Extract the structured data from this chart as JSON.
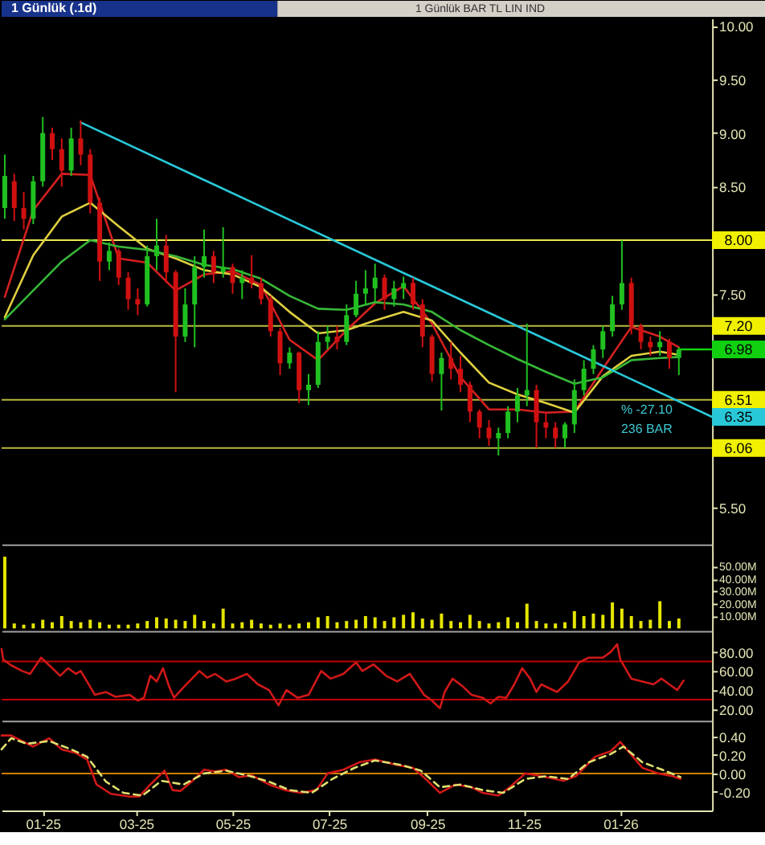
{
  "chart_data": [
    {
      "type": "candlestick",
      "title": "1 Günlük (.1d)",
      "subtitle": "1 Günlük BAR TL LIN IND",
      "annotations": [
        "% -27.10",
        "236 BAR"
      ],
      "x": [
        "2024-12-08",
        "2024-12-14",
        "2024-12-20",
        "2024-12-26",
        "2025-01-01",
        "2025-01-07",
        "2025-01-13",
        "2025-01-19",
        "2025-01-25",
        "2025-01-31",
        "2025-02-06",
        "2025-02-12",
        "2025-02-18",
        "2025-02-24",
        "2025-03-02",
        "2025-03-08",
        "2025-03-14",
        "2025-03-20",
        "2025-03-26",
        "2025-04-01",
        "2025-04-07",
        "2025-04-13",
        "2025-04-19",
        "2025-04-25",
        "2025-05-01",
        "2025-05-07",
        "2025-05-13",
        "2025-05-19",
        "2025-05-25",
        "2025-05-31",
        "2025-06-06",
        "2025-06-12",
        "2025-06-18",
        "2025-06-24",
        "2025-06-30",
        "2025-07-06",
        "2025-07-12",
        "2025-07-18",
        "2025-07-24",
        "2025-07-30",
        "2025-08-05",
        "2025-08-11",
        "2025-08-17",
        "2025-08-23",
        "2025-08-29",
        "2025-09-04",
        "2025-09-10",
        "2025-09-16",
        "2025-09-22",
        "2025-09-28",
        "2025-10-04",
        "2025-10-10",
        "2025-10-16",
        "2025-10-22",
        "2025-10-28",
        "2025-11-03",
        "2025-11-09",
        "2025-11-15",
        "2025-11-21",
        "2025-11-27",
        "2025-12-03",
        "2025-12-09",
        "2025-12-15",
        "2025-12-21",
        "2025-12-27",
        "2026-01-02",
        "2026-01-08",
        "2026-01-14",
        "2026-01-20",
        "2026-01-26",
        "2026-02-01",
        "2026-02-07"
      ],
      "ohlc": [
        [
          8.3,
          8.8,
          8.2,
          8.6
        ],
        [
          8.55,
          8.62,
          8.18,
          8.3
        ],
        [
          8.3,
          8.45,
          8.1,
          8.2
        ],
        [
          8.2,
          8.6,
          8.15,
          8.55
        ],
        [
          8.55,
          9.15,
          8.5,
          9.0
        ],
        [
          9.0,
          9.05,
          8.75,
          8.85
        ],
        [
          8.85,
          8.95,
          8.5,
          8.65
        ],
        [
          8.65,
          9.05,
          8.6,
          8.95
        ],
        [
          8.95,
          9.12,
          8.7,
          8.8
        ],
        [
          8.8,
          8.85,
          8.25,
          8.35
        ],
        [
          8.35,
          8.4,
          7.62,
          7.8
        ],
        [
          7.8,
          7.98,
          7.72,
          7.9
        ],
        [
          7.9,
          7.92,
          7.58,
          7.65
        ],
        [
          7.65,
          7.7,
          7.35,
          7.45
        ],
        [
          7.45,
          7.55,
          7.3,
          7.4
        ],
        [
          7.4,
          7.95,
          7.38,
          7.85
        ],
        [
          7.85,
          8.2,
          7.72,
          7.95
        ],
        [
          7.95,
          8.05,
          7.6,
          7.7
        ],
        [
          7.7,
          7.72,
          6.58,
          7.1
        ],
        [
          7.1,
          7.55,
          7.05,
          7.4
        ],
        [
          7.4,
          7.85,
          7.0,
          7.75
        ],
        [
          7.75,
          8.1,
          7.65,
          7.85
        ],
        [
          7.85,
          7.9,
          7.6,
          7.7
        ],
        [
          7.7,
          8.12,
          7.65,
          7.75
        ],
        [
          7.75,
          7.78,
          7.5,
          7.6
        ],
        [
          7.6,
          7.72,
          7.45,
          7.65
        ],
        [
          7.65,
          7.86,
          7.55,
          7.6
        ],
        [
          7.6,
          7.65,
          7.4,
          7.45
        ],
        [
          7.45,
          7.48,
          7.1,
          7.15
        ],
        [
          7.15,
          7.18,
          6.74,
          6.85
        ],
        [
          6.85,
          7.0,
          6.8,
          6.95
        ],
        [
          6.95,
          6.96,
          6.48,
          6.6
        ],
        [
          6.6,
          6.75,
          6.46,
          6.65
        ],
        [
          6.65,
          7.15,
          6.62,
          7.05
        ],
        [
          7.05,
          7.2,
          6.98,
          7.1
        ],
        [
          7.1,
          7.2,
          6.98,
          7.05
        ],
        [
          7.05,
          7.4,
          7.02,
          7.3
        ],
        [
          7.3,
          7.62,
          7.28,
          7.5
        ],
        [
          7.5,
          7.72,
          7.4,
          7.55
        ],
        [
          7.55,
          7.78,
          7.42,
          7.65
        ],
        [
          7.65,
          7.68,
          7.35,
          7.45
        ],
        [
          7.45,
          7.62,
          7.38,
          7.55
        ],
        [
          7.55,
          7.66,
          7.45,
          7.6
        ],
        [
          7.6,
          7.65,
          7.35,
          7.4
        ],
        [
          7.4,
          7.45,
          7.0,
          7.1
        ],
        [
          7.1,
          7.12,
          6.68,
          6.75
        ],
        [
          6.75,
          6.95,
          6.41,
          6.9
        ],
        [
          6.9,
          7.05,
          6.7,
          6.8
        ],
        [
          6.8,
          6.92,
          6.58,
          6.65
        ],
        [
          6.65,
          6.68,
          6.3,
          6.4
        ],
        [
          6.4,
          6.42,
          6.15,
          6.25
        ],
        [
          6.25,
          6.32,
          6.08,
          6.15
        ],
        [
          6.15,
          6.25,
          5.99,
          6.2
        ],
        [
          6.2,
          6.45,
          6.15,
          6.4
        ],
        [
          6.4,
          6.62,
          6.3,
          6.55
        ],
        [
          6.55,
          7.22,
          6.45,
          6.6
        ],
        [
          6.6,
          6.65,
          6.06,
          6.3
        ],
        [
          6.3,
          6.4,
          6.15,
          6.25
        ],
        [
          6.25,
          6.3,
          6.06,
          6.15
        ],
        [
          6.15,
          6.3,
          6.06,
          6.28
        ],
        [
          6.28,
          6.7,
          6.2,
          6.6
        ],
        [
          6.6,
          6.88,
          6.55,
          6.8
        ],
        [
          6.8,
          7.02,
          6.75,
          6.98
        ],
        [
          6.98,
          7.2,
          6.9,
          7.15
        ],
        [
          7.15,
          7.48,
          7.1,
          7.4
        ],
        [
          7.4,
          8.0,
          7.35,
          7.6
        ],
        [
          7.6,
          7.65,
          7.12,
          7.2
        ],
        [
          7.2,
          7.22,
          6.98,
          7.05
        ],
        [
          7.05,
          7.1,
          6.92,
          7.0
        ],
        [
          7.0,
          7.15,
          6.92,
          7.05
        ],
        [
          7.05,
          7.08,
          6.8,
          6.9
        ],
        [
          6.9,
          7.0,
          6.74,
          6.98
        ]
      ],
      "colors": [
        "#20c020",
        "#d01010",
        "#d01010",
        "#20c020",
        "#20c020",
        "#d01010",
        "#d01010",
        "#20c020",
        "#d01010",
        "#d01010",
        "#d01010",
        "#20c020",
        "#d01010",
        "#d01010",
        "#d01010",
        "#20c020",
        "#20c020",
        "#d01010",
        "#d01010",
        "#20c020",
        "#20c020",
        "#20c020",
        "#d01010",
        "#20c020",
        "#d01010",
        "#20c020",
        "#d01010",
        "#d01010",
        "#d01010",
        "#d01010",
        "#20c020",
        "#d01010",
        "#20c020",
        "#20c020",
        "#20c020",
        "#d01010",
        "#20c020",
        "#20c020",
        "#20c020",
        "#20c020",
        "#d01010",
        "#20c020",
        "#20c020",
        "#d01010",
        "#d01010",
        "#d01010",
        "#20c020",
        "#d01010",
        "#d01010",
        "#d01010",
        "#d01010",
        "#d01010",
        "#20c020",
        "#20c020",
        "#20c020",
        "#20c020",
        "#d01010",
        "#d01010",
        "#d01010",
        "#20c020",
        "#20c020",
        "#20c020",
        "#20c020",
        "#20c020",
        "#20c020",
        "#20c020",
        "#d01010",
        "#d01010",
        "#d01010",
        "#20c020",
        "#d01010",
        "#20c020"
      ],
      "series": [
        {
          "type": "line",
          "color": "#d42020",
          "x": [
            "2024-12-08",
            "2024-12-26",
            "2025-01-13",
            "2025-01-31",
            "2025-02-18",
            "2025-03-08",
            "2025-03-26",
            "2025-04-13",
            "2025-05-01",
            "2025-05-19",
            "2025-06-06",
            "2025-06-24",
            "2025-07-12",
            "2025-07-30",
            "2025-08-17",
            "2025-09-04",
            "2025-09-22",
            "2025-10-10",
            "2025-10-28",
            "2025-11-15",
            "2025-12-03",
            "2025-12-21",
            "2026-01-08",
            "2026-01-26",
            "2026-02-07"
          ],
          "values": [
            7.47,
            8.28,
            8.62,
            8.61,
            7.83,
            7.79,
            7.53,
            7.68,
            7.71,
            7.58,
            7.07,
            6.88,
            7.16,
            7.41,
            7.57,
            7.22,
            6.72,
            6.42,
            6.42,
            6.39,
            6.4,
            6.8,
            7.19,
            7.1,
            7.0
          ]
        },
        {
          "type": "line",
          "color": "#e0d040",
          "x": [
            "2024-12-08",
            "2024-12-26",
            "2025-01-13",
            "2025-01-31",
            "2025-02-18",
            "2025-03-08",
            "2025-03-26",
            "2025-04-13",
            "2025-05-01",
            "2025-05-19",
            "2025-06-06",
            "2025-06-24",
            "2025-07-12",
            "2025-07-30",
            "2025-08-17",
            "2025-09-04",
            "2025-09-22",
            "2025-10-10",
            "2025-10-28",
            "2025-11-15",
            "2025-12-03",
            "2025-12-21",
            "2026-01-08",
            "2026-01-26",
            "2026-02-07"
          ],
          "values": [
            7.28,
            7.86,
            8.22,
            8.35,
            8.13,
            7.92,
            7.83,
            7.72,
            7.68,
            7.56,
            7.33,
            7.13,
            7.16,
            7.25,
            7.33,
            7.25,
            6.95,
            6.67,
            6.56,
            6.48,
            6.39,
            6.73,
            6.92,
            6.96,
            6.93
          ]
        },
        {
          "type": "line",
          "color": "#38b838",
          "x": [
            "2024-12-08",
            "2024-12-26",
            "2025-01-13",
            "2025-01-31",
            "2025-02-18",
            "2025-03-08",
            "2025-03-26",
            "2025-04-13",
            "2025-05-01",
            "2025-05-19",
            "2025-06-06",
            "2025-06-24",
            "2025-07-12",
            "2025-07-30",
            "2025-08-17",
            "2025-09-04",
            "2025-09-22",
            "2025-10-10",
            "2025-10-28",
            "2025-11-15",
            "2025-12-03",
            "2025-12-21",
            "2026-01-08",
            "2026-01-26",
            "2026-02-07"
          ],
          "values": [
            7.26,
            7.53,
            7.8,
            8.0,
            7.94,
            7.91,
            7.85,
            7.77,
            7.73,
            7.64,
            7.48,
            7.36,
            7.35,
            7.42,
            7.4,
            7.33,
            7.16,
            7.02,
            6.89,
            6.77,
            6.66,
            6.72,
            6.88,
            6.9,
            6.91
          ]
        },
        {
          "type": "line",
          "color": "#28c8d8",
          "x": [
            "2025-01-25",
            "2026-02-28"
          ],
          "values": [
            9.1,
            6.35
          ],
          "value_labels": [
            null,
            "6.35"
          ]
        },
        {
          "type": "line",
          "color": "#10d010",
          "x": [
            "2026-02-07",
            "2026-02-28"
          ],
          "values": [
            6.98,
            6.98
          ],
          "value_labels": [
            null,
            "6.98"
          ]
        }
      ],
      "xlim": [
        "2024-12-06",
        "2026-02-28"
      ],
      "ylim": [
        5.16,
        10.07
      ],
      "yticks": [
        {
          "value": 10,
          "label": "10.00"
        },
        {
          "value": 9.5,
          "label": "9.50"
        },
        {
          "value": 9,
          "label": "9.00"
        },
        {
          "value": 8.5,
          "label": "8.50"
        },
        {
          "value": 7.5,
          "label": "7.50"
        },
        {
          "value": 5.5,
          "label": "5.50"
        }
      ],
      "ref_lines": [
        {
          "axis": "y",
          "value": 8.0,
          "label": "8.00",
          "color": "#e8e850"
        },
        {
          "axis": "y",
          "value": 7.2,
          "label": "7.20",
          "color": "#b8b840"
        },
        {
          "axis": "y",
          "value": 6.51,
          "label": "6.51",
          "color": "#b8b840"
        },
        {
          "axis": "y",
          "value": 6.06,
          "label": "6.06",
          "color": "#b8b840"
        }
      ],
      "tick_labels": "y"
    },
    {
      "type": "bar",
      "x": [
        "2024-12-08",
        "2024-12-14",
        "2024-12-20",
        "2024-12-26",
        "2025-01-01",
        "2025-01-07",
        "2025-01-13",
        "2025-01-19",
        "2025-01-25",
        "2025-01-31",
        "2025-02-06",
        "2025-02-12",
        "2025-02-18",
        "2025-02-24",
        "2025-03-02",
        "2025-03-08",
        "2025-03-14",
        "2025-03-20",
        "2025-03-26",
        "2025-04-01",
        "2025-04-07",
        "2025-04-13",
        "2025-04-19",
        "2025-04-25",
        "2025-05-01",
        "2025-05-07",
        "2025-05-13",
        "2025-05-19",
        "2025-05-25",
        "2025-05-31",
        "2025-06-06",
        "2025-06-12",
        "2025-06-18",
        "2025-06-24",
        "2025-06-30",
        "2025-07-06",
        "2025-07-12",
        "2025-07-18",
        "2025-07-24",
        "2025-07-30",
        "2025-08-05",
        "2025-08-11",
        "2025-08-17",
        "2025-08-23",
        "2025-08-29",
        "2025-09-04",
        "2025-09-10",
        "2025-09-16",
        "2025-09-22",
        "2025-09-28",
        "2025-10-04",
        "2025-10-10",
        "2025-10-16",
        "2025-10-22",
        "2025-10-28",
        "2025-11-03",
        "2025-11-09",
        "2025-11-15",
        "2025-11-21",
        "2025-11-27",
        "2025-12-03",
        "2025-12-09",
        "2025-12-15",
        "2025-12-21",
        "2025-12-27",
        "2026-01-02",
        "2026-01-08",
        "2026-01-14",
        "2026-01-20",
        "2026-01-26",
        "2026-02-01",
        "2026-02-07"
      ],
      "values": [
        58,
        4,
        3,
        4,
        7,
        5,
        10,
        6,
        5,
        7,
        5,
        3,
        3,
        3,
        4,
        6,
        9,
        8,
        7,
        6,
        11,
        6,
        4,
        16,
        4,
        5,
        7,
        4,
        3,
        4,
        3,
        4,
        5,
        9,
        10,
        5,
        6,
        7,
        10,
        9,
        6,
        9,
        11,
        13,
        8,
        7,
        12,
        6,
        5,
        11,
        6,
        4,
        5,
        9,
        5,
        20,
        6,
        4,
        4,
        5,
        14,
        10,
        12,
        11,
        21,
        16,
        10,
        6,
        7,
        22,
        6,
        8
      ],
      "color": "#e6e600",
      "xlim": [
        "2024-12-06",
        "2026-02-28"
      ],
      "ylim": [
        -2,
        68
      ],
      "yticks": [
        {
          "value": 50,
          "label": "50.00M"
        },
        {
          "value": 40,
          "label": "40.00M"
        },
        {
          "value": 30,
          "label": "30.00M"
        },
        {
          "value": 20,
          "label": "20.00M"
        },
        {
          "value": 10,
          "label": "10.00M"
        }
      ],
      "tick_labels": "y"
    },
    {
      "type": "line",
      "series": [
        {
          "color": "#d01818",
          "x": [
            "2024-12-06",
            "2024-12-07",
            "2024-12-12",
            "2024-12-19",
            "2024-12-24",
            "2024-12-31",
            "2025-01-07",
            "2025-01-12",
            "2025-01-17",
            "2025-01-22",
            "2025-01-25",
            "2025-02-03",
            "2025-02-10",
            "2025-02-16",
            "2025-02-25",
            "2025-03-02",
            "2025-03-06",
            "2025-03-10",
            "2025-03-14",
            "2025-03-18",
            "2025-03-22",
            "2025-03-25",
            "2025-03-31",
            "2025-04-10",
            "2025-04-15",
            "2025-04-20",
            "2025-04-27",
            "2025-05-03",
            "2025-05-10",
            "2025-05-17",
            "2025-05-24",
            "2025-05-30",
            "2025-06-04",
            "2025-06-11",
            "2025-06-18",
            "2025-06-26",
            "2025-07-02",
            "2025-07-10",
            "2025-07-18",
            "2025-07-22",
            "2025-07-29",
            "2025-08-06",
            "2025-08-13",
            "2025-08-21",
            "2025-08-30",
            "2025-09-04",
            "2025-09-09",
            "2025-09-12",
            "2025-09-17",
            "2025-09-24",
            "2025-09-29",
            "2025-10-06",
            "2025-10-11",
            "2025-10-16",
            "2025-10-21",
            "2025-10-26",
            "2025-10-31",
            "2025-11-05",
            "2025-11-09",
            "2025-11-12",
            "2025-11-22",
            "2025-11-29",
            "2025-12-06",
            "2025-12-12",
            "2025-12-21",
            "2025-12-26",
            "2025-12-30",
            "2026-01-01",
            "2026-01-08",
            "2026-01-15",
            "2026-01-22",
            "2026-01-27",
            "2026-02-01",
            "2026-02-06",
            "2026-02-10"
          ],
          "values": [
            83,
            72,
            66,
            60,
            57,
            74,
            63,
            55,
            63,
            57,
            60,
            35,
            38,
            33,
            35,
            29,
            32,
            55,
            49,
            63,
            43,
            32,
            43,
            60,
            53,
            57,
            49,
            52,
            57,
            46,
            40,
            24,
            40,
            32,
            35,
            60,
            52,
            57,
            69,
            60,
            67,
            55,
            49,
            57,
            35,
            29,
            21,
            38,
            52,
            43,
            35,
            32,
            26,
            33,
            32,
            46,
            63,
            52,
            38,
            46,
            38,
            49,
            69,
            74,
            74,
            80,
            88,
            72,
            52,
            49,
            46,
            52,
            46,
            40,
            50
          ]
        }
      ],
      "xlim": [
        "2024-12-06",
        "2026-02-28"
      ],
      "ylim": [
        8,
        102
      ],
      "yticks": [
        {
          "value": 80,
          "label": "80.00"
        },
        {
          "value": 60,
          "label": "60.00"
        },
        {
          "value": 40,
          "label": "40.00"
        },
        {
          "value": 20,
          "label": "20.00"
        }
      ],
      "ref_lines": [
        {
          "axis": "y",
          "value": 70,
          "color": "#c00000"
        },
        {
          "axis": "y",
          "value": 30,
          "color": "#c00000"
        }
      ],
      "tick_labels": "y"
    },
    {
      "type": "line",
      "series": [
        {
          "color": "#d01818",
          "x": [
            "2024-12-06",
            "2024-12-12",
            "2024-12-19",
            "2024-12-26",
            "2025-01-05",
            "2025-01-13",
            "2025-01-22",
            "2025-01-29",
            "2025-02-04",
            "2025-02-13",
            "2025-02-25",
            "2025-03-03",
            "2025-03-10",
            "2025-03-19",
            "2025-03-24",
            "2025-03-29",
            "2025-04-05",
            "2025-04-13",
            "2025-04-20",
            "2025-04-27",
            "2025-05-05",
            "2025-05-13",
            "2025-05-24",
            "2025-06-03",
            "2025-06-13",
            "2025-06-23",
            "2025-06-30",
            "2025-07-10",
            "2025-07-20",
            "2025-07-30",
            "2025-08-13",
            "2025-08-23",
            "2025-08-31",
            "2025-09-09",
            "2025-09-19",
            "2025-09-29",
            "2025-10-06",
            "2025-10-16",
            "2025-10-23",
            "2025-11-02",
            "2025-11-12",
            "2025-11-26",
            "2025-12-04",
            "2025-12-16",
            "2025-12-26",
            "2026-01-01",
            "2026-01-05",
            "2026-01-15",
            "2026-01-25",
            "2026-02-03",
            "2026-02-08"
          ],
          "values": [
            0.41,
            0.41,
            0.35,
            0.29,
            0.38,
            0.26,
            0.22,
            0.15,
            -0.12,
            -0.22,
            -0.25,
            -0.25,
            -0.12,
            0.03,
            -0.18,
            -0.19,
            -0.09,
            0.04,
            0.02,
            0.04,
            -0.04,
            -0.02,
            -0.12,
            -0.18,
            -0.21,
            -0.18,
            0.0,
            0.04,
            0.12,
            0.15,
            0.09,
            0.06,
            -0.06,
            -0.21,
            -0.12,
            -0.15,
            -0.21,
            -0.24,
            -0.15,
            0.0,
            -0.03,
            -0.08,
            -0.03,
            0.18,
            0.24,
            0.34,
            0.26,
            0.06,
            0.0,
            -0.03,
            -0.06
          ]
        },
        {
          "color": "#e0e070",
          "line_style": "dashed",
          "x": [
            "2024-12-06",
            "2024-12-12",
            "2024-12-22",
            "2025-01-05",
            "2025-01-19",
            "2025-01-29",
            "2025-02-10",
            "2025-02-21",
            "2025-03-05",
            "2025-03-17",
            "2025-03-31",
            "2025-04-13",
            "2025-04-27",
            "2025-05-10",
            "2025-05-24",
            "2025-06-06",
            "2025-06-20",
            "2025-07-03",
            "2025-07-17",
            "2025-07-30",
            "2025-08-16",
            "2025-08-28",
            "2025-09-09",
            "2025-09-22",
            "2025-10-06",
            "2025-10-19",
            "2025-11-02",
            "2025-11-15",
            "2025-11-29",
            "2025-12-12",
            "2025-12-26",
            "2026-01-03",
            "2026-01-15",
            "2026-01-29",
            "2026-02-08"
          ],
          "values": [
            0.26,
            0.38,
            0.32,
            0.35,
            0.26,
            0.18,
            -0.09,
            -0.21,
            -0.24,
            -0.08,
            -0.12,
            0.0,
            0.03,
            -0.02,
            -0.09,
            -0.18,
            -0.21,
            -0.06,
            0.06,
            0.14,
            0.09,
            0.03,
            -0.15,
            -0.12,
            -0.18,
            -0.21,
            -0.06,
            -0.03,
            -0.06,
            0.12,
            0.21,
            0.29,
            0.12,
            0.03,
            -0.04
          ]
        }
      ],
      "xlim": [
        "2024-12-06",
        "2026-02-28"
      ],
      "xticks": [
        {
          "value": "2025-01-01",
          "label": "01-25"
        },
        {
          "value": "2025-03-01",
          "label": "03-25"
        },
        {
          "value": "2025-05-01",
          "label": "05-25"
        },
        {
          "value": "2025-07-01",
          "label": "07-25"
        },
        {
          "value": "2025-09-01",
          "label": "09-25"
        },
        {
          "value": "2025-11-01",
          "label": "11-25"
        },
        {
          "value": "2026-01-01",
          "label": "01-26"
        }
      ],
      "ylim": [
        -0.4,
        0.57
      ],
      "yticks": [
        {
          "value": 0.4,
          "label": "0.40"
        },
        {
          "value": 0.2,
          "label": "0.20"
        },
        {
          "value": 0,
          "label": "0.00"
        },
        {
          "value": -0.2,
          "label": "-0.20"
        }
      ],
      "ref_lines": [
        {
          "axis": "y",
          "value": 0,
          "color": "#d08000"
        }
      ]
    }
  ]
}
